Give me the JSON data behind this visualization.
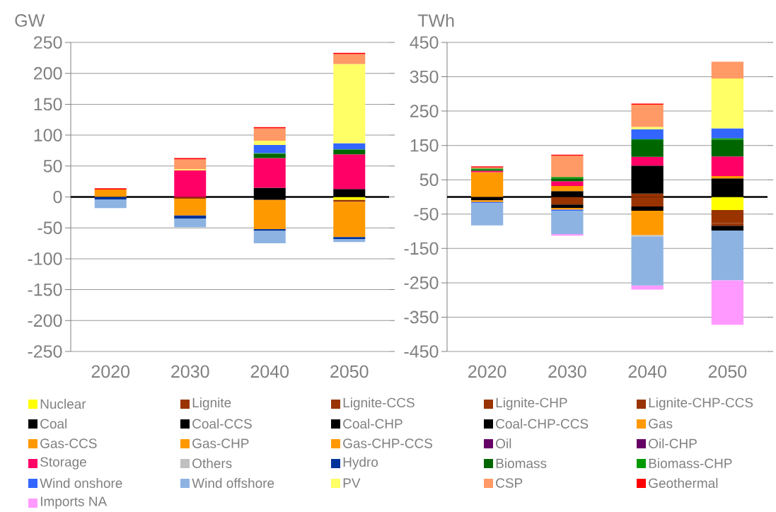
{
  "chart_data": [
    {
      "type": "bar",
      "stacked": true,
      "categories": [
        "2020",
        "2030",
        "2040",
        "2050"
      ],
      "ylabel": "GW",
      "ylim": [
        -250,
        250
      ],
      "yticks": [
        -250,
        -200,
        -150,
        -100,
        -50,
        0,
        50,
        100,
        150,
        200,
        250
      ],
      "grid": "y",
      "legend": "bottom",
      "ref_lines": [
        {
          "axis": "y",
          "value": 0,
          "color": "#000000"
        }
      ],
      "series": [
        {
          "name": "Nuclear",
          "color": "#ffff00",
          "values": [
            null,
            null,
            null,
            -5
          ]
        },
        {
          "name": "Lignite",
          "color": "#993300",
          "values": [
            null,
            null,
            null,
            null
          ]
        },
        {
          "name": "Lignite-CCS",
          "color": "#993300",
          "values": [
            null,
            null,
            null,
            null
          ]
        },
        {
          "name": "Lignite-CHP",
          "color": "#993300",
          "values": [
            null,
            -3,
            null,
            -3
          ]
        },
        {
          "name": "Lignite-CHP-CCS",
          "color": "#993300",
          "values": [
            null,
            null,
            null,
            null
          ]
        },
        {
          "name": "Coal",
          "color": "#000000",
          "values": [
            null,
            null,
            15,
            13
          ]
        },
        {
          "name": "Coal-CCS",
          "color": "#000000",
          "values": [
            null,
            null,
            null,
            null
          ]
        },
        {
          "name": "Coal-CHP",
          "color": "#000000",
          "values": [
            null,
            null,
            -5,
            null
          ]
        },
        {
          "name": "Coal-CHP-CCS",
          "color": "#000000",
          "values": [
            null,
            null,
            null,
            null
          ]
        },
        {
          "name": "Gas",
          "color": "#ff9900",
          "values": [
            12,
            -24,
            -47,
            -57
          ]
        },
        {
          "name": "Gas-CCS",
          "color": "#ff9900",
          "values": [
            null,
            null,
            null,
            null
          ]
        },
        {
          "name": "Gas-CHP",
          "color": "#ff9900",
          "values": [
            null,
            -3,
            null,
            null
          ]
        },
        {
          "name": "Gas-CHP-CCS",
          "color": "#ff9900",
          "values": [
            null,
            null,
            null,
            null
          ]
        },
        {
          "name": "Oil",
          "color": "#660066",
          "values": [
            null,
            null,
            null,
            null
          ]
        },
        {
          "name": "Oil-CHP",
          "color": "#660066",
          "values": [
            null,
            null,
            null,
            null
          ]
        },
        {
          "name": "Storage",
          "color": "#ff0066",
          "values": [
            null,
            43,
            48,
            56
          ]
        },
        {
          "name": "Others",
          "color": "#c0c0c0",
          "values": [
            null,
            null,
            null,
            null
          ]
        },
        {
          "name": "Hydro",
          "color": "#003399",
          "values": [
            -4,
            -5,
            -3,
            -3
          ]
        },
        {
          "name": "Biomass",
          "color": "#006600",
          "values": [
            null,
            null,
            7,
            7
          ]
        },
        {
          "name": "Biomass-CHP",
          "color": "#009900",
          "values": [
            null,
            null,
            1,
            1
          ]
        },
        {
          "name": "Wind onshore",
          "color": "#3366ff",
          "values": [
            null,
            null,
            13,
            10
          ]
        },
        {
          "name": "Wind offshore",
          "color": "#8db3e2",
          "values": [
            -14,
            -14,
            -20,
            -5
          ]
        },
        {
          "name": "PV",
          "color": "#ffff66",
          "values": [
            null,
            2,
            7,
            128
          ]
        },
        {
          "name": "CSP",
          "color": "#ff9966",
          "values": [
            null,
            16,
            20,
            16
          ]
        },
        {
          "name": "Geothermal",
          "color": "#ff0000",
          "values": [
            2,
            2,
            2,
            2
          ]
        },
        {
          "name": "Imports NA",
          "color": "#ff99ff",
          "values": [
            null,
            null,
            null,
            null
          ]
        }
      ]
    },
    {
      "type": "bar",
      "stacked": true,
      "categories": [
        "2020",
        "2030",
        "2040",
        "2050"
      ],
      "ylabel": "TWh",
      "ylim": [
        -450,
        450
      ],
      "yticks": [
        -450,
        -350,
        -250,
        -150,
        -50,
        50,
        150,
        250,
        350,
        450
      ],
      "grid": "y",
      "ref_lines": [
        {
          "axis": "y",
          "value": 0,
          "color": "#000000"
        }
      ],
      "series": [
        {
          "color": "#ffff00",
          "values": [
            null,
            null,
            null,
            -38
          ]
        },
        {
          "color": "#993300",
          "values": [
            null,
            null,
            -28,
            -38
          ]
        },
        {
          "color": "#993300",
          "values": [
            null,
            -22,
            10,
            -8
          ]
        },
        {
          "color": "#000000",
          "values": [
            -10,
            17,
            81,
            54
          ]
        },
        {
          "color": "#000000",
          "values": [
            null,
            -10,
            null,
            null
          ]
        },
        {
          "color": "#000000",
          "values": [
            null,
            null,
            -12,
            -14
          ]
        },
        {
          "color": "#ff9900",
          "values": [
            72,
            15,
            -71,
            7
          ]
        },
        {
          "color": "#ff9900",
          "values": [
            -5,
            -5,
            null,
            null
          ]
        },
        {
          "color": "#ff0066",
          "values": [
            4,
            14,
            26,
            57
          ]
        },
        {
          "color": "#c0c0c0",
          "values": [
            null,
            null,
            -5,
            null
          ]
        },
        {
          "color": "#006600",
          "values": [
            4,
            8,
            49,
            49
          ]
        },
        {
          "color": "#009900",
          "values": [
            3,
            4,
            2,
            4
          ]
        },
        {
          "color": "#3366ff",
          "values": [
            -3,
            -3,
            29,
            29
          ]
        },
        {
          "color": "#8db3e2",
          "values": [
            -65,
            -68,
            -142,
            -145
          ]
        },
        {
          "color": "#ffff66",
          "values": [
            null,
            null,
            7,
            145
          ]
        },
        {
          "color": "#ff9966",
          "values": [
            3,
            62,
            65,
            49
          ]
        },
        {
          "color": "#ff0000",
          "values": [
            3,
            3,
            3,
            null
          ]
        },
        {
          "color": "#ff99ff",
          "values": [
            null,
            -5,
            -12,
            -129
          ]
        }
      ]
    }
  ]
}
